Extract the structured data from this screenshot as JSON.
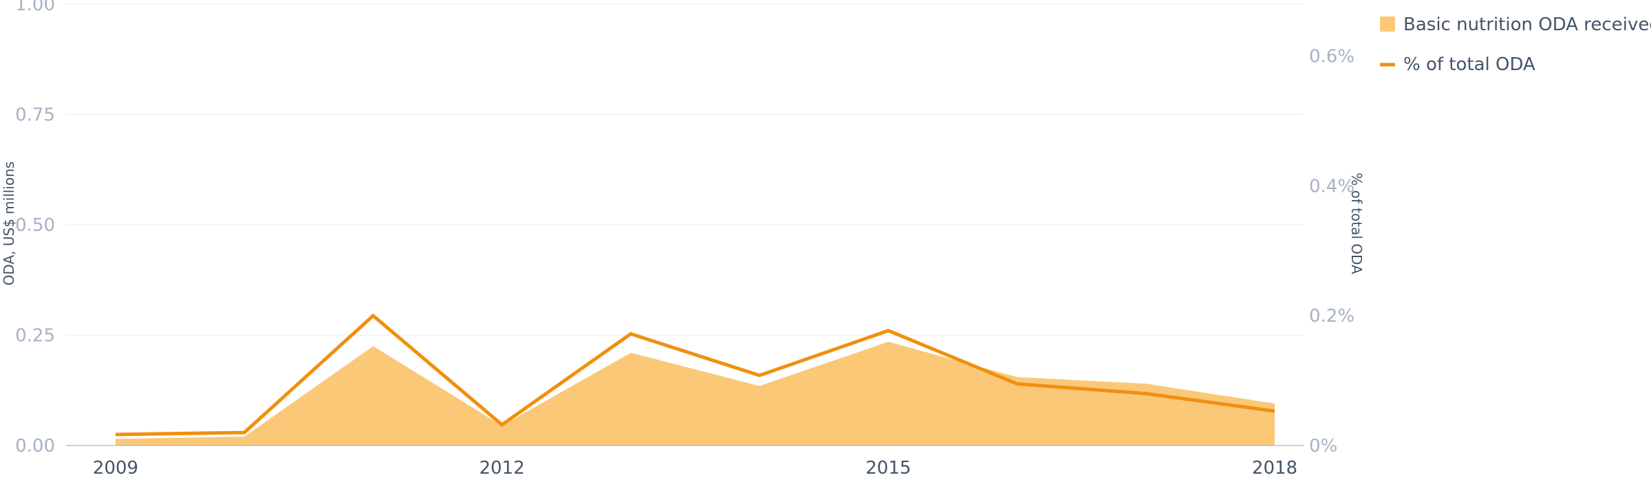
{
  "chart_data": {
    "type": "area+line",
    "title": "",
    "x": [
      2009,
      2010,
      2011,
      2012,
      2013,
      2014,
      2015,
      2016,
      2017,
      2018
    ],
    "x_tick_labels": [
      "2009",
      "2012",
      "2015",
      "2018"
    ],
    "series": [
      {
        "name": "Basic nutrition ODA received",
        "type": "area",
        "axis": "left",
        "color": "#fbc878",
        "values": [
          0.015,
          0.02,
          0.225,
          0.045,
          0.21,
          0.135,
          0.235,
          0.155,
          0.14,
          0.095
        ]
      },
      {
        "name": "% of total ODA",
        "type": "line",
        "axis": "right",
        "color": "#f0900e",
        "values": [
          0.017,
          0.02,
          0.2,
          0.032,
          0.172,
          0.108,
          0.177,
          0.095,
          0.08,
          0.053
        ]
      }
    ],
    "y_left": {
      "label": "ODA, US$ millions",
      "range": [
        0,
        1.0
      ],
      "ticks": [
        0,
        0.25,
        0.5,
        0.75,
        1.0
      ],
      "tick_labels": [
        "0.00",
        "0.25",
        "0.50",
        "0.75",
        "1.00"
      ]
    },
    "y_right": {
      "label": "% of total ODA",
      "range": [
        0,
        0.68
      ],
      "ticks": [
        0,
        0.2,
        0.4,
        0.6
      ],
      "tick_labels": [
        "0%",
        "0.2%",
        "0.4%",
        "0.6%"
      ]
    },
    "grid": true,
    "legend_position": "top-right"
  },
  "colors": {
    "area": "#fbc878",
    "line": "#f0900e",
    "grid": "#edf0f4",
    "baseline": "#b8c2d0"
  }
}
